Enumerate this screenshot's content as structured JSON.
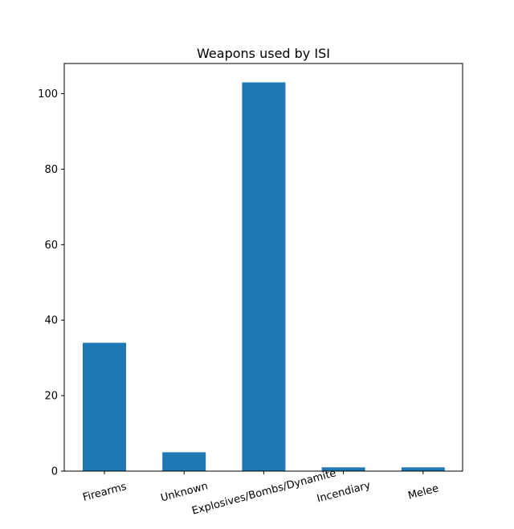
{
  "chart_data": {
    "type": "bar",
    "title": "Weapons used by ISI",
    "xlabel": "",
    "ylabel": "",
    "categories": [
      "Firearms",
      "Unknown",
      "Explosives/Bombs/Dynamite",
      "Incendiary",
      "Melee"
    ],
    "values": [
      34,
      5,
      103,
      1,
      1
    ],
    "ylim": [
      0,
      108
    ],
    "yticks": [
      0,
      20,
      40,
      60,
      80,
      100
    ],
    "xtick_rotation_deg": 15,
    "bar_color": "#1f77b4",
    "grid": false,
    "legend": "none"
  }
}
